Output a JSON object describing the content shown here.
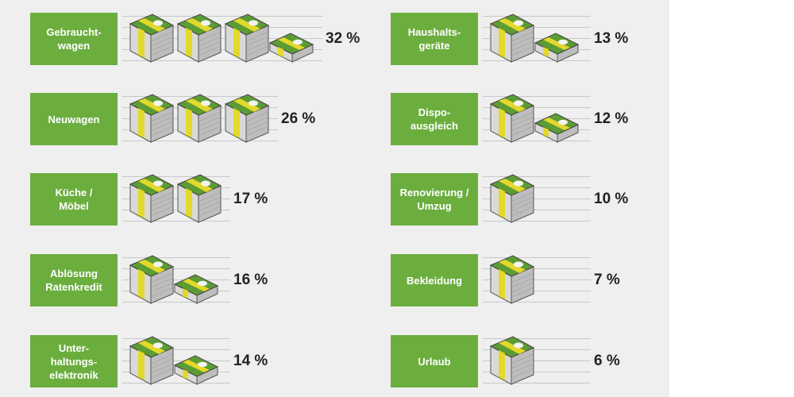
{
  "chart_data": {
    "type": "bar",
    "categories": [
      "Gebraucht-\nwagen",
      "Neuwagen",
      "Küche /\nMöbel",
      "Ablösung\nRatenkredit",
      "Unter-\nhaltungs-\nelektronik",
      "Haushalts-\ngeräte",
      "Dispo-\nausgleich",
      "Renovierung /\nUmzug",
      "Bekleidung",
      "Urlaub"
    ],
    "values": [
      32,
      26,
      17,
      16,
      14,
      13,
      12,
      10,
      7,
      6
    ],
    "value_labels": [
      "32 %",
      "26 %",
      "17 %",
      "16 %",
      "14 %",
      "13 %",
      "12 %",
      "10 %",
      "7 %",
      "6 %"
    ],
    "full_stacks": [
      3,
      3,
      2,
      1,
      1,
      1,
      1,
      1,
      1,
      1
    ],
    "small_stacks": [
      1,
      0,
      0,
      1,
      1,
      1,
      1,
      0,
      0,
      0
    ],
    "title": "",
    "xlabel": "",
    "ylabel": ""
  },
  "colors": {
    "label_bg": "#6cae3e",
    "panel_bg": "#efefef",
    "money_green": "#5c9c35",
    "band_yellow": "#e3d92a"
  },
  "icon": "money-stack-icon"
}
